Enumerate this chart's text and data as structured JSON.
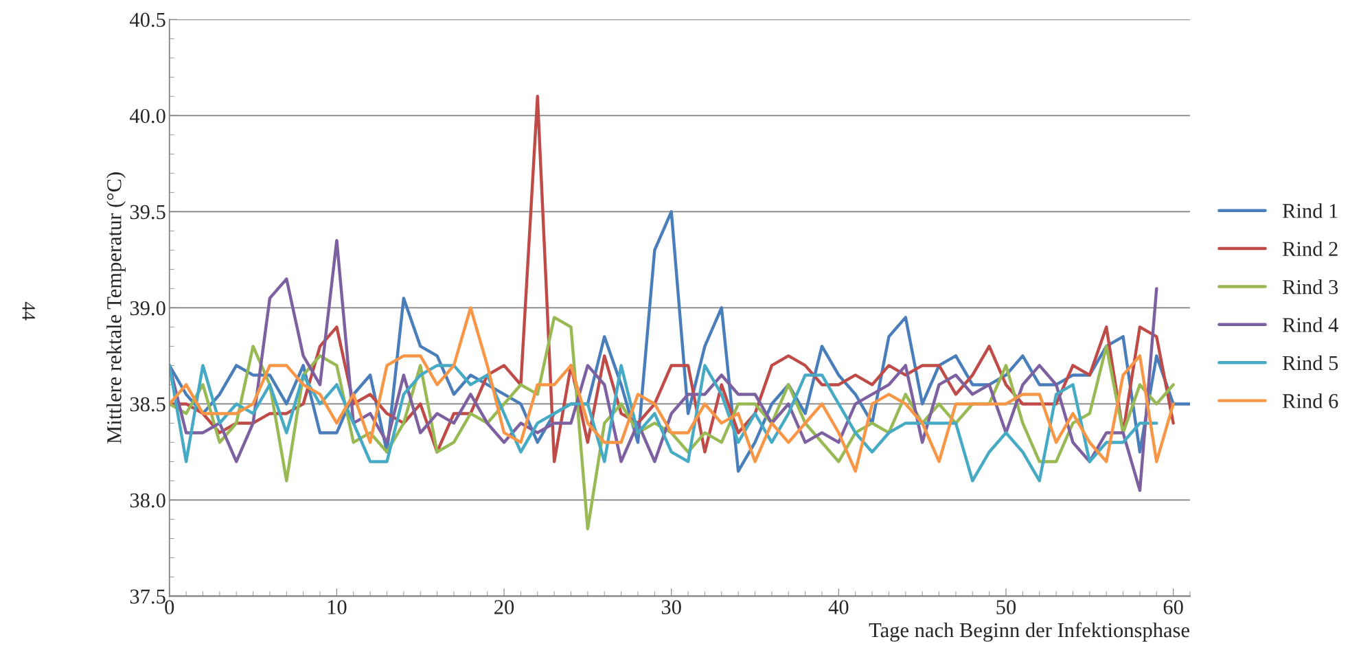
{
  "chart_data": {
    "type": "line",
    "xlabel": "Tage nach Beginn der Infektionsphase",
    "ylabel": "Mittlere rektale Temperatur (°C)",
    "annotations": [
      "44"
    ],
    "xlim": [
      0,
      61
    ],
    "xticks": [
      0,
      10,
      20,
      30,
      40,
      50,
      60
    ],
    "ylim": [
      37.5,
      40.5
    ],
    "yticks": [
      37.5,
      {
        "value": 38,
        "label": "38.0"
      },
      38.5,
      {
        "value": 39,
        "label": "39.0"
      },
      39.5,
      {
        "value": 40,
        "label": "40.0"
      },
      40.5
    ],
    "grid": "y",
    "legend": "right",
    "marker": "none",
    "line_style": "solid",
    "series": [
      {
        "name": "Rind 1",
        "color": "#4a7ebb",
        "x": [
          0,
          1,
          2,
          3,
          4,
          5,
          6,
          7,
          8,
          9,
          10,
          11,
          12,
          13,
          14,
          15,
          16,
          17,
          18,
          19,
          20,
          21,
          22,
          23,
          24,
          25,
          26,
          27,
          28,
          29,
          30,
          31,
          32,
          33,
          34,
          35,
          36,
          37,
          38,
          39,
          40,
          41,
          42,
          43,
          44,
          45,
          46,
          47,
          48,
          49,
          50,
          51,
          52,
          53,
          54,
          55,
          56,
          57,
          58,
          59,
          60,
          61
        ],
        "values": [
          38.7,
          38.55,
          38.45,
          38.55,
          38.7,
          38.65,
          38.65,
          38.5,
          38.7,
          38.35,
          38.35,
          38.55,
          38.65,
          38.25,
          39.05,
          38.8,
          38.75,
          38.55,
          38.65,
          38.6,
          38.55,
          38.5,
          38.3,
          38.45,
          38.5,
          38.5,
          38.85,
          38.6,
          38.3,
          39.3,
          39.5,
          38.45,
          38.8,
          39.0,
          38.15,
          38.3,
          38.5,
          38.6,
          38.45,
          38.8,
          38.65,
          38.55,
          38.4,
          38.85,
          38.95,
          38.5,
          38.7,
          38.75,
          38.6,
          38.6,
          38.65,
          38.75,
          38.6,
          38.6,
          38.65,
          38.65,
          38.8,
          38.85,
          38.25,
          38.75,
          38.5,
          38.5
        ]
      },
      {
        "name": "Rind 2",
        "color": "#be4b48",
        "x": [
          0,
          1,
          2,
          3,
          4,
          5,
          6,
          7,
          8,
          9,
          10,
          11,
          12,
          13,
          14,
          15,
          16,
          17,
          18,
          19,
          20,
          21,
          22,
          23,
          24,
          25,
          26,
          27,
          28,
          29,
          30,
          31,
          32,
          33,
          34,
          35,
          36,
          37,
          38,
          39,
          40,
          41,
          42,
          43,
          44,
          45,
          46,
          47,
          48,
          49,
          50,
          51,
          52,
          53,
          54,
          55,
          56,
          57,
          58,
          59,
          60
        ],
        "values": [
          38.5,
          38.5,
          38.45,
          38.35,
          38.4,
          38.4,
          38.45,
          38.45,
          38.5,
          38.8,
          38.9,
          38.5,
          38.55,
          38.45,
          38.4,
          38.5,
          38.25,
          38.45,
          38.45,
          38.65,
          38.7,
          38.6,
          40.1,
          38.2,
          38.7,
          38.3,
          38.75,
          38.45,
          38.4,
          38.5,
          38.7,
          38.7,
          38.25,
          38.6,
          38.35,
          38.45,
          38.7,
          38.75,
          38.7,
          38.6,
          38.6,
          38.65,
          38.6,
          38.7,
          38.65,
          38.7,
          38.7,
          38.55,
          38.65,
          38.8,
          38.6,
          38.5,
          38.5,
          38.5,
          38.7,
          38.65,
          38.9,
          38.35,
          38.9,
          38.85,
          38.4
        ]
      },
      {
        "name": "Rind 3",
        "color": "#98b954",
        "x": [
          0,
          1,
          2,
          3,
          4,
          5,
          6,
          7,
          8,
          9,
          10,
          11,
          12,
          13,
          14,
          15,
          16,
          17,
          18,
          19,
          20,
          21,
          22,
          23,
          24,
          25,
          26,
          27,
          28,
          29,
          30,
          31,
          32,
          33,
          34,
          35,
          36,
          37,
          38,
          39,
          40,
          41,
          42,
          43,
          44,
          45,
          46,
          47,
          48,
          49,
          50,
          51,
          52,
          53,
          54,
          55,
          56,
          57,
          58,
          59,
          60
        ],
        "values": [
          38.5,
          38.45,
          38.6,
          38.3,
          38.4,
          38.8,
          38.6,
          38.1,
          38.65,
          38.75,
          38.7,
          38.3,
          38.35,
          38.25,
          38.4,
          38.7,
          38.25,
          38.3,
          38.45,
          38.4,
          38.5,
          38.6,
          38.55,
          38.95,
          38.9,
          37.85,
          38.4,
          38.5,
          38.35,
          38.4,
          38.35,
          38.25,
          38.35,
          38.3,
          38.5,
          38.5,
          38.4,
          38.6,
          38.4,
          38.3,
          38.2,
          38.35,
          38.4,
          38.35,
          38.55,
          38.4,
          38.5,
          38.4,
          38.5,
          38.5,
          38.7,
          38.4,
          38.2,
          38.2,
          38.4,
          38.45,
          38.8,
          38.35,
          38.6,
          38.5,
          38.6
        ]
      },
      {
        "name": "Rind 4",
        "color": "#7d60a0",
        "x": [
          0,
          1,
          2,
          3,
          4,
          5,
          6,
          7,
          8,
          9,
          10,
          11,
          12,
          13,
          14,
          15,
          16,
          17,
          18,
          19,
          20,
          21,
          22,
          23,
          24,
          25,
          26,
          27,
          28,
          29,
          30,
          31,
          32,
          33,
          34,
          35,
          36,
          37,
          38,
          39,
          40,
          41,
          42,
          43,
          44,
          45,
          46,
          47,
          48,
          49,
          50,
          51,
          52,
          53,
          54,
          55,
          56,
          57,
          58,
          59
        ],
        "values": [
          38.7,
          38.35,
          38.35,
          38.4,
          38.2,
          38.4,
          39.05,
          39.15,
          38.75,
          38.6,
          39.35,
          38.4,
          38.45,
          38.3,
          38.65,
          38.35,
          38.45,
          38.4,
          38.55,
          38.4,
          38.3,
          38.4,
          38.35,
          38.4,
          38.4,
          38.7,
          38.6,
          38.2,
          38.4,
          38.2,
          38.45,
          38.55,
          38.55,
          38.65,
          38.55,
          38.55,
          38.4,
          38.5,
          38.3,
          38.35,
          38.3,
          38.5,
          38.55,
          38.6,
          38.7,
          38.3,
          38.6,
          38.65,
          38.55,
          38.6,
          38.35,
          38.6,
          38.7,
          38.6,
          38.3,
          38.2,
          38.35,
          38.35,
          38.05,
          39.1
        ]
      },
      {
        "name": "Rind 5",
        "color": "#46aac5",
        "x": [
          0,
          1,
          2,
          3,
          4,
          5,
          6,
          7,
          8,
          9,
          10,
          11,
          12,
          13,
          14,
          15,
          16,
          17,
          18,
          19,
          20,
          21,
          22,
          23,
          24,
          25,
          26,
          27,
          28,
          29,
          30,
          31,
          32,
          33,
          34,
          35,
          36,
          37,
          38,
          39,
          40,
          41,
          42,
          43,
          44,
          45,
          46,
          47,
          48,
          49,
          50,
          51,
          52,
          53,
          54,
          55,
          56,
          57,
          58,
          59
        ],
        "values": [
          38.7,
          38.2,
          38.7,
          38.4,
          38.5,
          38.45,
          38.6,
          38.35,
          38.65,
          38.5,
          38.6,
          38.4,
          38.2,
          38.2,
          38.55,
          38.65,
          38.7,
          38.7,
          38.6,
          38.65,
          38.45,
          38.25,
          38.4,
          38.45,
          38.5,
          38.5,
          38.2,
          38.7,
          38.35,
          38.45,
          38.25,
          38.2,
          38.7,
          38.55,
          38.3,
          38.45,
          38.3,
          38.45,
          38.65,
          38.65,
          38.5,
          38.35,
          38.25,
          38.35,
          38.4,
          38.4,
          38.4,
          38.4,
          38.1,
          38.25,
          38.35,
          38.25,
          38.1,
          38.55,
          38.6,
          38.2,
          38.3,
          38.3,
          38.4,
          38.4
        ]
      },
      {
        "name": "Rind 6",
        "color": "#f79646",
        "x": [
          0,
          1,
          2,
          3,
          4,
          5,
          6,
          7,
          8,
          9,
          10,
          11,
          12,
          13,
          14,
          15,
          16,
          17,
          18,
          19,
          20,
          21,
          22,
          23,
          24,
          25,
          26,
          27,
          28,
          29,
          30,
          31,
          32,
          33,
          34,
          35,
          36,
          37,
          38,
          39,
          40,
          41,
          42,
          43,
          44,
          45,
          46,
          47,
          48,
          49,
          50,
          51,
          52,
          53,
          54,
          55,
          56,
          57,
          58,
          59,
          60
        ],
        "values": [
          38.5,
          38.6,
          38.45,
          38.45,
          38.45,
          38.5,
          38.7,
          38.7,
          38.6,
          38.55,
          38.4,
          38.55,
          38.3,
          38.7,
          38.75,
          38.75,
          38.6,
          38.7,
          39.0,
          38.7,
          38.35,
          38.3,
          38.6,
          38.6,
          38.7,
          38.4,
          38.3,
          38.3,
          38.55,
          38.5,
          38.35,
          38.35,
          38.5,
          38.4,
          38.45,
          38.2,
          38.4,
          38.3,
          38.4,
          38.5,
          38.35,
          38.15,
          38.5,
          38.55,
          38.5,
          38.4,
          38.2,
          38.5,
          38.5,
          38.5,
          38.5,
          38.55,
          38.55,
          38.3,
          38.45,
          38.3,
          38.2,
          38.65,
          38.75,
          38.2,
          38.5
        ]
      }
    ]
  }
}
